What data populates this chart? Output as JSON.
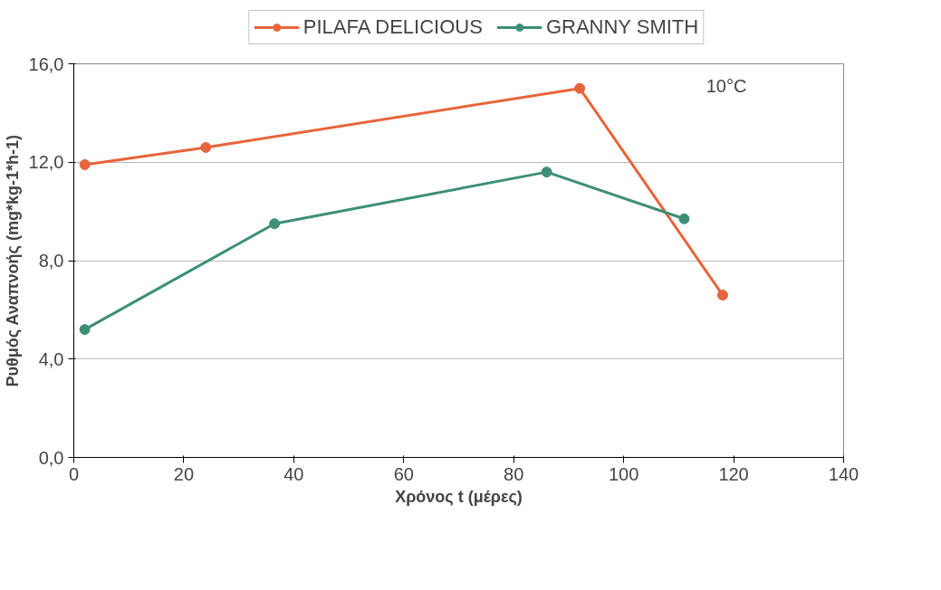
{
  "chart_data": {
    "type": "line",
    "xlabel": "Χρόνος t (μέρες)",
    "ylabel": "Ρυθμός Αναπνοής (mg*kg-1*h-1)",
    "annotations": [
      "10°C"
    ],
    "xlim": [
      0,
      140
    ],
    "xticks": [
      0,
      20,
      40,
      60,
      80,
      100,
      120,
      140
    ],
    "ylim": [
      0,
      16
    ],
    "yticks": [
      {
        "value": 0,
        "label": "0,0"
      },
      {
        "value": 4,
        "label": "4,0"
      },
      {
        "value": 8,
        "label": "8,0"
      },
      {
        "value": 12,
        "label": "12,0"
      },
      {
        "value": 16,
        "label": "16,0"
      }
    ],
    "grid": "y",
    "legend": "top",
    "marker": "circle",
    "line_style": "solid",
    "series": [
      {
        "name": "PILAFA DELICIOUS",
        "color": "#e8643c",
        "x": [
          2,
          24,
          92,
          118
        ],
        "values": [
          11.9,
          12.6,
          15.0,
          6.6
        ]
      },
      {
        "name": "GRANNY SMITH",
        "color": "#3d8f77",
        "x": [
          2,
          36.5,
          86,
          111
        ],
        "values": [
          5.2,
          9.5,
          11.6,
          9.7
        ]
      }
    ]
  }
}
